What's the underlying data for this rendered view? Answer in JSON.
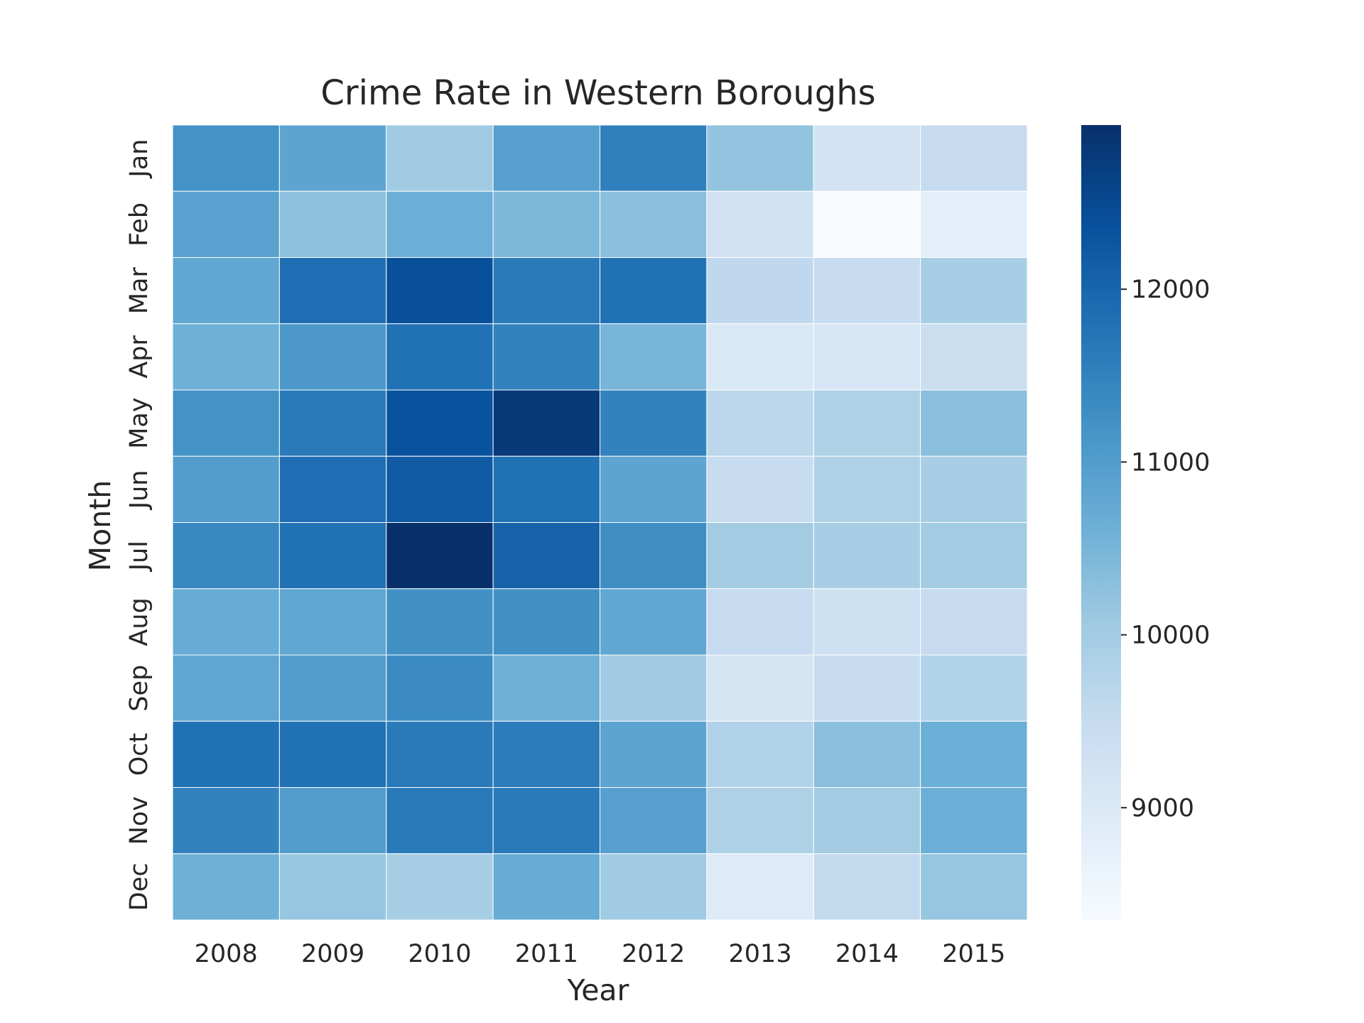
{
  "chart_data": {
    "type": "heatmap",
    "title": "Crime Rate in Western Boroughs",
    "xlabel": "Year",
    "ylabel": "Month",
    "x": [
      "2008",
      "2009",
      "2010",
      "2011",
      "2012",
      "2013",
      "2014",
      "2015"
    ],
    "y": [
      "Jan",
      "Feb",
      "Mar",
      "Apr",
      "May",
      "Jun",
      "Jul",
      "Aug",
      "Sep",
      "Oct",
      "Nov",
      "Dec"
    ],
    "values": [
      [
        11200,
        10850,
        10050,
        10950,
        11550,
        10200,
        9200,
        9500
      ],
      [
        10900,
        10250,
        10650,
        10450,
        10300,
        9250,
        8350,
        8800
      ],
      [
        10800,
        11850,
        12400,
        11650,
        11800,
        9600,
        9450,
        9950
      ],
      [
        10600,
        11100,
        11800,
        11500,
        10500,
        9050,
        9100,
        9400
      ],
      [
        11200,
        11650,
        12350,
        12800,
        11500,
        9650,
        9850,
        10300
      ],
      [
        11000,
        11850,
        12200,
        11800,
        10850,
        9450,
        9850,
        9950
      ],
      [
        11400,
        11800,
        12950,
        12050,
        11300,
        10000,
        9950,
        10000
      ],
      [
        10700,
        10800,
        11250,
        11250,
        10800,
        9500,
        9300,
        9500
      ],
      [
        10800,
        11000,
        11350,
        10600,
        10050,
        9150,
        9450,
        9800
      ],
      [
        11800,
        11800,
        11650,
        11600,
        10850,
        9800,
        10300,
        10650
      ],
      [
        11500,
        11000,
        11650,
        11650,
        10950,
        9850,
        10000,
        10650
      ],
      [
        10600,
        10150,
        9950,
        10700,
        10050,
        8950,
        9550,
        10150
      ]
    ],
    "colorbar": {
      "min": 8350,
      "max": 12950,
      "ticks": [
        9000,
        10000,
        11000,
        12000
      ],
      "tick_labels": [
        "9000",
        "10000",
        "11000",
        "12000"
      ]
    },
    "colormap": "Blues",
    "grid": false,
    "legend": "colorbar-right"
  }
}
